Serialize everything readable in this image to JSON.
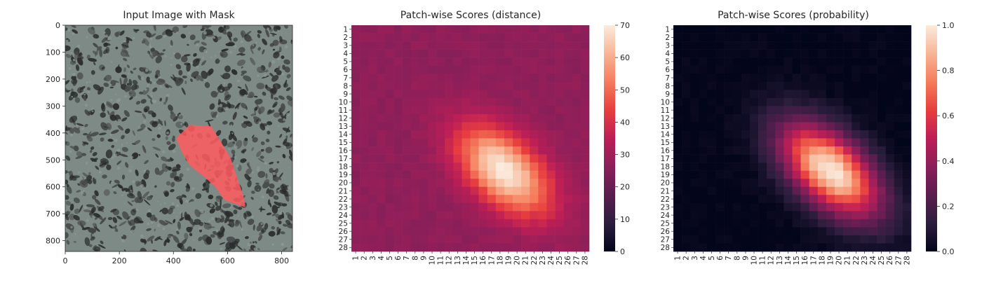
{
  "panels": {
    "image": {
      "title": "Input Image with Mask",
      "xticks": [
        "0",
        "200",
        "400",
        "600",
        "800"
      ],
      "yticks": [
        "0",
        "100",
        "200",
        "300",
        "400",
        "500",
        "600",
        "700",
        "800"
      ]
    },
    "distance": {
      "title": "Patch-wise Scores (distance)",
      "colorbar_ticks": [
        "0",
        "10",
        "20",
        "30",
        "40",
        "50",
        "60",
        "70"
      ]
    },
    "probability": {
      "title": "Patch-wise Scores (probability)",
      "colorbar_ticks": [
        "0.0",
        "0.2",
        "0.4",
        "0.6",
        "0.8",
        "1.0"
      ]
    }
  },
  "colors": {
    "mask": "#ff5a5f",
    "speckle_light": "#8e9a94",
    "speckle_dark": "#2a2c2c",
    "colormap": "rocket"
  },
  "chart_data": [
    {
      "type": "image",
      "title": "Input Image with Mask",
      "xlim": [
        0,
        840
      ],
      "ylim": [
        840,
        0
      ],
      "xticks": [
        0,
        200,
        400,
        600,
        800
      ],
      "yticks": [
        0,
        100,
        200,
        300,
        400,
        500,
        600,
        700,
        800
      ],
      "mask_polygon": [
        [
          410,
          420
        ],
        [
          460,
          370
        ],
        [
          540,
          375
        ],
        [
          610,
          490
        ],
        [
          660,
          640
        ],
        [
          665,
          675
        ],
        [
          590,
          650
        ],
        [
          555,
          600
        ],
        [
          510,
          560
        ],
        [
          460,
          520
        ],
        [
          430,
          470
        ]
      ]
    },
    {
      "type": "heatmap",
      "title": "Patch-wise Scores (distance)",
      "rows": 28,
      "cols": 28,
      "row_labels": [
        "1",
        "2",
        "3",
        "4",
        "5",
        "6",
        "7",
        "8",
        "9",
        "10",
        "11",
        "12",
        "13",
        "14",
        "15",
        "16",
        "17",
        "18",
        "19",
        "20",
        "21",
        "22",
        "23",
        "24",
        "25",
        "26",
        "27",
        "28"
      ],
      "col_labels": [
        "1",
        "2",
        "3",
        "4",
        "5",
        "6",
        "7",
        "8",
        "9",
        "10",
        "11",
        "12",
        "13",
        "14",
        "15",
        "16",
        "17",
        "18",
        "19",
        "20",
        "21",
        "22",
        "23",
        "24",
        "25",
        "26",
        "27",
        "28"
      ],
      "vmin": 0,
      "vmax": 70,
      "background": 27,
      "peak": 70,
      "hotspot_center": [
        18.5,
        18.5
      ],
      "hotspot_spread": [
        4.0,
        5.5
      ],
      "colorbar_ticks": [
        0,
        10,
        20,
        30,
        40,
        50,
        60,
        70
      ]
    },
    {
      "type": "heatmap",
      "title": "Patch-wise Scores (probability)",
      "rows": 28,
      "cols": 28,
      "row_labels": [
        "1",
        "2",
        "3",
        "4",
        "5",
        "6",
        "7",
        "8",
        "9",
        "10",
        "11",
        "12",
        "13",
        "14",
        "15",
        "16",
        "17",
        "18",
        "19",
        "20",
        "21",
        "22",
        "23",
        "24",
        "25",
        "26",
        "27",
        "28"
      ],
      "col_labels": [
        "1",
        "2",
        "3",
        "4",
        "5",
        "6",
        "7",
        "8",
        "9",
        "10",
        "11",
        "12",
        "13",
        "14",
        "15",
        "16",
        "17",
        "18",
        "19",
        "20",
        "21",
        "22",
        "23",
        "24",
        "25",
        "26",
        "27",
        "28"
      ],
      "vmin": 0.0,
      "vmax": 1.0,
      "background": 0.0,
      "peak": 1.0,
      "hotspot_center": [
        18.5,
        19.0
      ],
      "hotspot_spread": [
        4.2,
        6.0
      ],
      "colorbar_ticks": [
        0.0,
        0.2,
        0.4,
        0.6,
        0.8,
        1.0
      ]
    }
  ]
}
